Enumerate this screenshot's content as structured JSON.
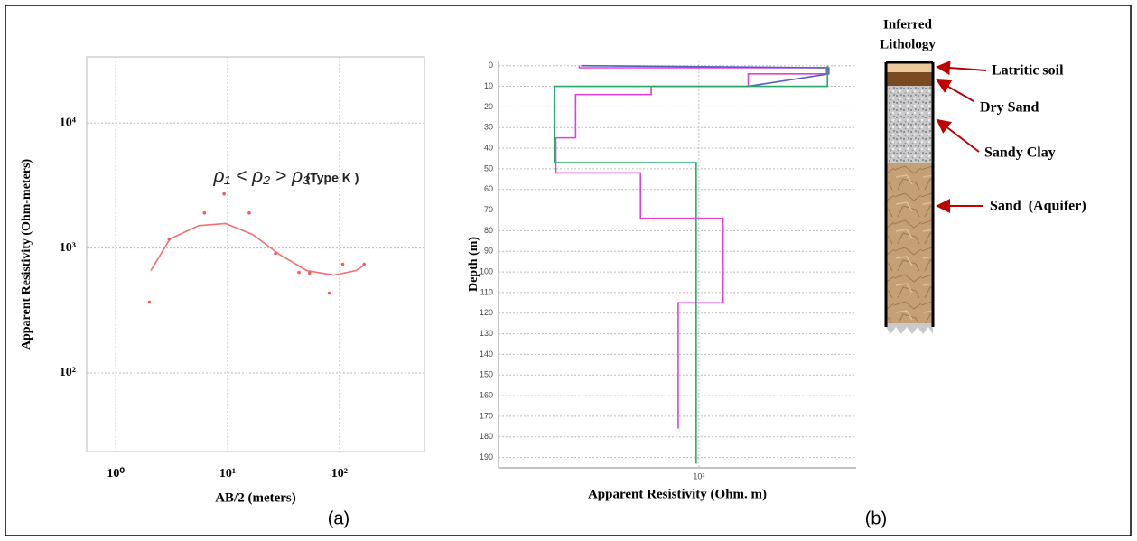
{
  "chart_data": [
    {
      "type": "scatter",
      "log_x": true,
      "log_y": true,
      "grid": true,
      "x_label": "AB/2 (meters)",
      "y_label": "Apparent Resistivity (Ohm-meters)",
      "panel_label": "(a)",
      "annotations": [
        "ρ₁ < ρ₂ > ρ₃",
        "(Type K )"
      ],
      "color": "#f25a5a",
      "x": [
        2,
        3,
        6.2,
        9.3,
        15.6,
        26.8,
        43.4,
        54,
        81,
        107,
        166
      ],
      "values": [
        369,
        1180,
        1910,
        2710,
        1910,
        905,
        638,
        630,
        435,
        742,
        742
      ],
      "fit": {
        "color": "#f27070",
        "x": [
          2.06,
          3.05,
          5.5,
          9.6,
          16.8,
          29,
          51,
          89,
          141,
          171
        ],
        "values": [
          660,
          1180,
          1510,
          1570,
          1280,
          890,
          660,
          607,
          660,
          742
        ]
      },
      "xlim": [
        0.55,
        575
      ],
      "ylim": [
        23.5,
        33800
      ],
      "xticks": [
        {
          "value": 1,
          "label": "10⁰"
        },
        {
          "value": 10,
          "label": "10¹"
        },
        {
          "value": 100,
          "label": "10²"
        }
      ],
      "yticks": [
        {
          "value": 100,
          "label": "10²"
        },
        {
          "value": 1000,
          "label": "10³"
        },
        {
          "value": 10000,
          "label": "10⁴"
        }
      ]
    },
    {
      "type": "profile",
      "log_x": true,
      "grid": true,
      "x_label": "Apparent Resistivity (Ohm. m)",
      "y_label": "Depth (m)",
      "panel_label": "(b)",
      "series": [
        {
          "color": "#e040e0",
          "values": [
            465,
            465,
            2265,
            2265,
            1372,
            1372,
            737,
            737,
            454,
            454,
            400,
            400,
            688,
            688,
            1168,
            1168,
            876,
            876
          ],
          "depth": [
            0,
            1,
            1,
            4,
            4,
            10,
            10,
            14,
            14,
            35,
            35,
            52,
            52,
            74,
            74,
            115,
            115,
            176
          ]
        },
        {
          "color": "#5560c0",
          "values": [
            470,
            2300,
            2300,
            1372
          ],
          "depth": [
            0,
            1,
            4,
            10
          ]
        },
        {
          "color": "#2aa86a",
          "values": [
            2280,
            2280,
            396,
            396,
            983,
            983
          ],
          "depth": [
            0,
            10,
            10,
            47,
            47,
            193
          ]
        }
      ],
      "xlim": [
        277,
        2740
      ],
      "ylim": [
        -2.5,
        195
      ],
      "xticks": [
        {
          "value": 1000,
          "label": "10³"
        }
      ],
      "yticks": [
        0,
        10,
        20,
        30,
        40,
        50,
        60,
        70,
        80,
        90,
        100,
        110,
        120,
        130,
        140,
        150,
        160,
        170,
        180,
        190
      ]
    }
  ],
  "lithology": {
    "title": [
      "Inferred",
      "Lithology"
    ],
    "layers": [
      "Latritic soil",
      "Dry Sand",
      "Sandy Clay",
      "Sand  (Aquifer)"
    ]
  }
}
